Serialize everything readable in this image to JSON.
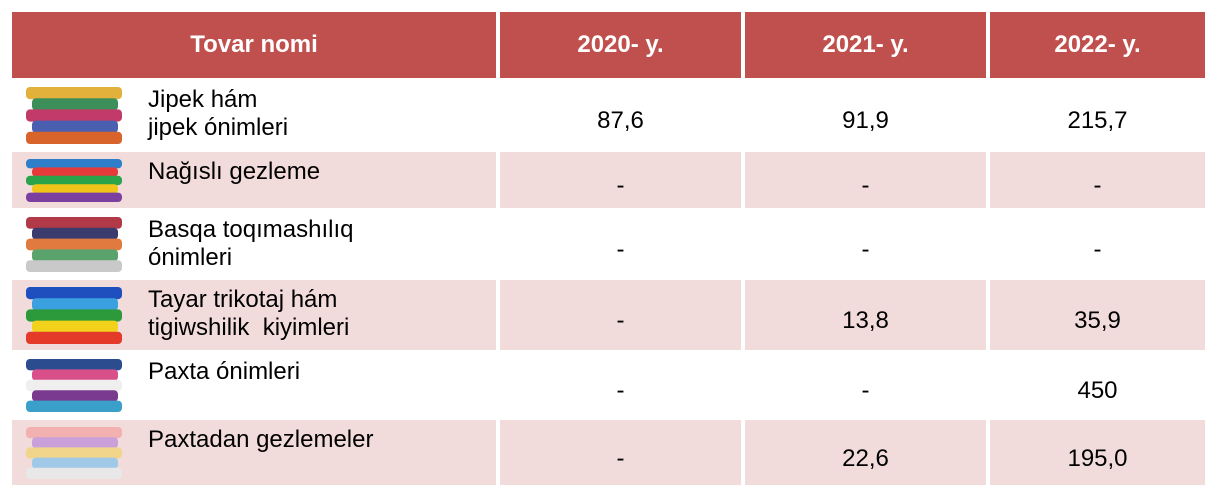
{
  "table": {
    "header": [
      "Tovar nomi",
      "2020- y.",
      "2021- y.",
      "2022- y."
    ],
    "rows": [
      {
        "name": [
          "Jipek hám",
          "jipek ónimleri"
        ],
        "values": [
          "87,6",
          "91,9",
          "215,7"
        ]
      },
      {
        "name": [
          "Nağıslı gezleme"
        ],
        "values": [
          "-",
          "-",
          "-"
        ]
      },
      {
        "name": [
          "Basqa toqımashılıq",
          "ónimleri"
        ],
        "values": [
          "-",
          "-",
          "-"
        ]
      },
      {
        "name": [
          "Tayar trikotaj hám",
          "tigiwshilik  kiyimleri"
        ],
        "values": [
          "-",
          "13,8",
          "35,9"
        ]
      },
      {
        "name": [
          "Paxta ónimleri"
        ],
        "values": [
          "-",
          "-",
          "450"
        ]
      },
      {
        "name": [
          "Paxtadan gezlemeler"
        ],
        "values": [
          "-",
          "22,6",
          "195,0"
        ]
      }
    ]
  }
}
